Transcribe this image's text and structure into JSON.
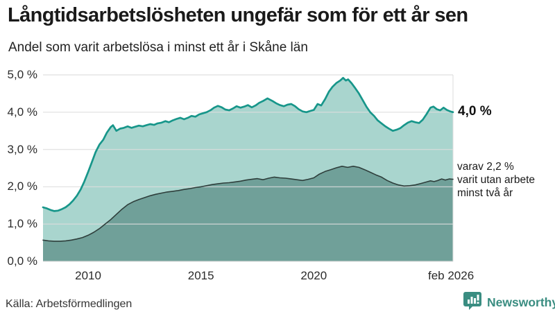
{
  "header": {
    "title": "Långtidsarbetslösheten ungefär som för ett år sen",
    "subtitle": "Andel som varit arbetslösa i minst ett år i Skåne län"
  },
  "annotations": {
    "total_end_label": "4,0 %",
    "secondary_lines": [
      "varav 2,2 %",
      "varit utan arbete",
      "minst två år"
    ]
  },
  "footer": {
    "source": "Källa: Arbetsförmedlingen",
    "brand": "Newsworthy"
  },
  "colors": {
    "line_total": "#17968a",
    "area_total": "#a9d5ce",
    "line_two_year": "#2e3e3b",
    "area_two_year": "#70a099",
    "grid": "rgba(221,221,221,0.8)",
    "axis_text": "#2b2b2b",
    "brand_teal": "#3a8d81",
    "background": "#ffffff"
  },
  "chart_data": {
    "type": "area",
    "title": "Långtidsarbetslösheten ungefär som för ett år sen",
    "subtitle": "Andel som varit arbetslösa i minst ett år i Skåne län",
    "xlabel": "",
    "ylabel": "",
    "x_range": [
      2008,
      2026.17
    ],
    "grid": true,
    "legend": "none (direct end-of-line annotations)",
    "y_axis": {
      "range": [
        0,
        5
      ],
      "ticks": [
        {
          "v": 5,
          "label": "5,0 %"
        },
        {
          "v": 4,
          "label": "4,0 %"
        },
        {
          "v": 3,
          "label": "3,0 %"
        },
        {
          "v": 2,
          "label": "2,0 %"
        },
        {
          "v": 1,
          "label": "1,0 %"
        },
        {
          "v": 0,
          "label": "0,0 %"
        }
      ]
    },
    "x_axis": {
      "ticks": [
        {
          "t": 2010,
          "label": "2010"
        },
        {
          "t": 2015,
          "label": "2015"
        },
        {
          "t": 2020,
          "label": "2020"
        },
        {
          "t": 2026.08,
          "label": "feb 2026"
        }
      ]
    },
    "series": [
      {
        "name": "Andel arbetslösa minst ett år",
        "end_value": 4.0,
        "points": [
          [
            2008.0,
            1.45
          ],
          [
            2008.17,
            1.42
          ],
          [
            2008.33,
            1.38
          ],
          [
            2008.5,
            1.35
          ],
          [
            2008.67,
            1.36
          ],
          [
            2008.83,
            1.4
          ],
          [
            2009.0,
            1.45
          ],
          [
            2009.17,
            1.53
          ],
          [
            2009.33,
            1.63
          ],
          [
            2009.5,
            1.76
          ],
          [
            2009.67,
            1.93
          ],
          [
            2009.83,
            2.14
          ],
          [
            2010.0,
            2.4
          ],
          [
            2010.17,
            2.67
          ],
          [
            2010.33,
            2.93
          ],
          [
            2010.5,
            3.13
          ],
          [
            2010.67,
            3.26
          ],
          [
            2010.83,
            3.45
          ],
          [
            2011.0,
            3.6
          ],
          [
            2011.1,
            3.65
          ],
          [
            2011.25,
            3.5
          ],
          [
            2011.42,
            3.56
          ],
          [
            2011.58,
            3.58
          ],
          [
            2011.75,
            3.62
          ],
          [
            2011.92,
            3.58
          ],
          [
            2012.08,
            3.61
          ],
          [
            2012.25,
            3.64
          ],
          [
            2012.42,
            3.62
          ],
          [
            2012.58,
            3.65
          ],
          [
            2012.75,
            3.68
          ],
          [
            2012.92,
            3.66
          ],
          [
            2013.08,
            3.7
          ],
          [
            2013.25,
            3.72
          ],
          [
            2013.42,
            3.76
          ],
          [
            2013.58,
            3.73
          ],
          [
            2013.75,
            3.78
          ],
          [
            2013.92,
            3.82
          ],
          [
            2014.08,
            3.85
          ],
          [
            2014.25,
            3.81
          ],
          [
            2014.42,
            3.85
          ],
          [
            2014.58,
            3.9
          ],
          [
            2014.75,
            3.88
          ],
          [
            2014.92,
            3.94
          ],
          [
            2015.08,
            3.97
          ],
          [
            2015.25,
            4.0
          ],
          [
            2015.42,
            4.05
          ],
          [
            2015.58,
            4.12
          ],
          [
            2015.75,
            4.17
          ],
          [
            2015.92,
            4.13
          ],
          [
            2016.08,
            4.07
          ],
          [
            2016.25,
            4.05
          ],
          [
            2016.42,
            4.1
          ],
          [
            2016.58,
            4.16
          ],
          [
            2016.75,
            4.12
          ],
          [
            2016.92,
            4.15
          ],
          [
            2017.08,
            4.19
          ],
          [
            2017.25,
            4.13
          ],
          [
            2017.42,
            4.18
          ],
          [
            2017.58,
            4.25
          ],
          [
            2017.75,
            4.3
          ],
          [
            2017.95,
            4.37
          ],
          [
            2018.17,
            4.3
          ],
          [
            2018.33,
            4.24
          ],
          [
            2018.5,
            4.19
          ],
          [
            2018.67,
            4.16
          ],
          [
            2018.83,
            4.2
          ],
          [
            2019.0,
            4.22
          ],
          [
            2019.17,
            4.16
          ],
          [
            2019.33,
            4.08
          ],
          [
            2019.5,
            4.02
          ],
          [
            2019.67,
            4.0
          ],
          [
            2019.83,
            4.03
          ],
          [
            2020.0,
            4.06
          ],
          [
            2020.17,
            4.22
          ],
          [
            2020.33,
            4.18
          ],
          [
            2020.5,
            4.35
          ],
          [
            2020.67,
            4.55
          ],
          [
            2020.83,
            4.68
          ],
          [
            2021.0,
            4.78
          ],
          [
            2021.17,
            4.85
          ],
          [
            2021.3,
            4.92
          ],
          [
            2021.42,
            4.85
          ],
          [
            2021.52,
            4.88
          ],
          [
            2021.67,
            4.78
          ],
          [
            2021.83,
            4.65
          ],
          [
            2022.0,
            4.5
          ],
          [
            2022.17,
            4.32
          ],
          [
            2022.33,
            4.15
          ],
          [
            2022.5,
            4.0
          ],
          [
            2022.67,
            3.9
          ],
          [
            2022.83,
            3.78
          ],
          [
            2023.0,
            3.7
          ],
          [
            2023.17,
            3.62
          ],
          [
            2023.33,
            3.56
          ],
          [
            2023.5,
            3.5
          ],
          [
            2023.67,
            3.53
          ],
          [
            2023.83,
            3.57
          ],
          [
            2024.0,
            3.65
          ],
          [
            2024.17,
            3.72
          ],
          [
            2024.33,
            3.76
          ],
          [
            2024.5,
            3.73
          ],
          [
            2024.67,
            3.71
          ],
          [
            2024.83,
            3.8
          ],
          [
            2025.0,
            3.95
          ],
          [
            2025.17,
            4.12
          ],
          [
            2025.3,
            4.15
          ],
          [
            2025.45,
            4.08
          ],
          [
            2025.6,
            4.05
          ],
          [
            2025.75,
            4.12
          ],
          [
            2025.9,
            4.06
          ],
          [
            2026.05,
            4.02
          ],
          [
            2026.17,
            4.0
          ]
        ]
      },
      {
        "name": "varav utan arbete minst två år",
        "end_value": 2.2,
        "points": [
          [
            2008.0,
            0.57
          ],
          [
            2008.25,
            0.55
          ],
          [
            2008.5,
            0.54
          ],
          [
            2008.75,
            0.54
          ],
          [
            2009.0,
            0.55
          ],
          [
            2009.25,
            0.57
          ],
          [
            2009.5,
            0.6
          ],
          [
            2009.75,
            0.64
          ],
          [
            2010.0,
            0.7
          ],
          [
            2010.25,
            0.78
          ],
          [
            2010.5,
            0.88
          ],
          [
            2010.75,
            1.0
          ],
          [
            2011.0,
            1.12
          ],
          [
            2011.25,
            1.26
          ],
          [
            2011.5,
            1.4
          ],
          [
            2011.75,
            1.52
          ],
          [
            2012.0,
            1.6
          ],
          [
            2012.25,
            1.66
          ],
          [
            2012.5,
            1.71
          ],
          [
            2012.75,
            1.76
          ],
          [
            2013.0,
            1.8
          ],
          [
            2013.25,
            1.83
          ],
          [
            2013.5,
            1.86
          ],
          [
            2013.75,
            1.88
          ],
          [
            2014.0,
            1.9
          ],
          [
            2014.25,
            1.93
          ],
          [
            2014.5,
            1.95
          ],
          [
            2014.75,
            1.98
          ],
          [
            2015.0,
            2.0
          ],
          [
            2015.25,
            2.03
          ],
          [
            2015.5,
            2.06
          ],
          [
            2015.75,
            2.08
          ],
          [
            2016.0,
            2.1
          ],
          [
            2016.25,
            2.11
          ],
          [
            2016.5,
            2.13
          ],
          [
            2016.75,
            2.15
          ],
          [
            2017.0,
            2.18
          ],
          [
            2017.25,
            2.2
          ],
          [
            2017.5,
            2.22
          ],
          [
            2017.75,
            2.19
          ],
          [
            2018.0,
            2.23
          ],
          [
            2018.25,
            2.26
          ],
          [
            2018.5,
            2.24
          ],
          [
            2018.75,
            2.23
          ],
          [
            2019.0,
            2.21
          ],
          [
            2019.25,
            2.19
          ],
          [
            2019.5,
            2.17
          ],
          [
            2019.75,
            2.2
          ],
          [
            2020.0,
            2.24
          ],
          [
            2020.25,
            2.34
          ],
          [
            2020.5,
            2.41
          ],
          [
            2020.75,
            2.46
          ],
          [
            2021.0,
            2.51
          ],
          [
            2021.25,
            2.55
          ],
          [
            2021.5,
            2.52
          ],
          [
            2021.75,
            2.55
          ],
          [
            2022.0,
            2.52
          ],
          [
            2022.25,
            2.46
          ],
          [
            2022.5,
            2.39
          ],
          [
            2022.75,
            2.32
          ],
          [
            2023.0,
            2.26
          ],
          [
            2023.25,
            2.17
          ],
          [
            2023.5,
            2.1
          ],
          [
            2023.75,
            2.05
          ],
          [
            2024.0,
            2.02
          ],
          [
            2024.25,
            2.03
          ],
          [
            2024.5,
            2.05
          ],
          [
            2024.75,
            2.09
          ],
          [
            2025.0,
            2.13
          ],
          [
            2025.17,
            2.16
          ],
          [
            2025.33,
            2.14
          ],
          [
            2025.5,
            2.17
          ],
          [
            2025.67,
            2.21
          ],
          [
            2025.83,
            2.18
          ],
          [
            2026.0,
            2.21
          ],
          [
            2026.17,
            2.2
          ]
        ]
      }
    ]
  }
}
